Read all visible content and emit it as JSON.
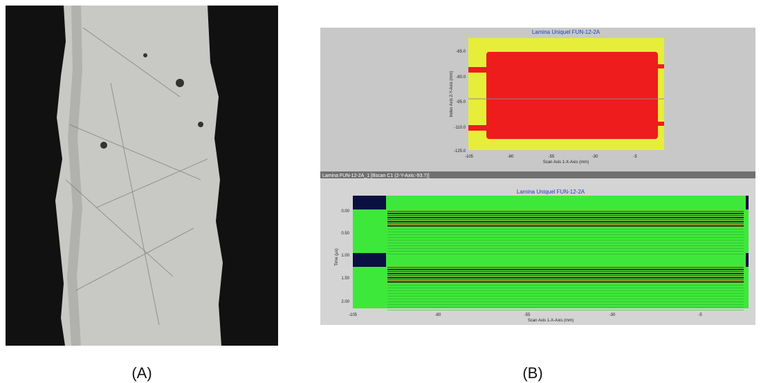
{
  "panels": {
    "a": {
      "label": "(A)"
    },
    "b": {
      "label": "(B)",
      "cscan": {
        "title": "Lamina Uniquel FUN-12-2A",
        "y_axis_label": "Index Axis 2-Y-Axis (mm)",
        "x_axis_label": "Scan Axis 1-X-Axis (mm)",
        "yticks": [
          "-65.0",
          "-80.0",
          "-95.0",
          "-110.0",
          "-125.0"
        ],
        "xticks": [
          "-105",
          "-80",
          "-55",
          "-30",
          "-5"
        ]
      },
      "window_title": "Lamina FUN-12-2A_1 [Bscan C1 (2-Y-Axis:-93.7)]",
      "bscan": {
        "title": "Lamina Uniquel FUN-12-2A",
        "y_axis_label": "Time (µs)",
        "x_axis_label": "Scan Axis 1-X-Axis (mm)",
        "yticks": [
          "0.00",
          "0.50",
          "1.00",
          "1.50",
          "2.00"
        ],
        "xticks": [
          "-105",
          "-80",
          "-55",
          "-30",
          "-5"
        ]
      }
    }
  }
}
